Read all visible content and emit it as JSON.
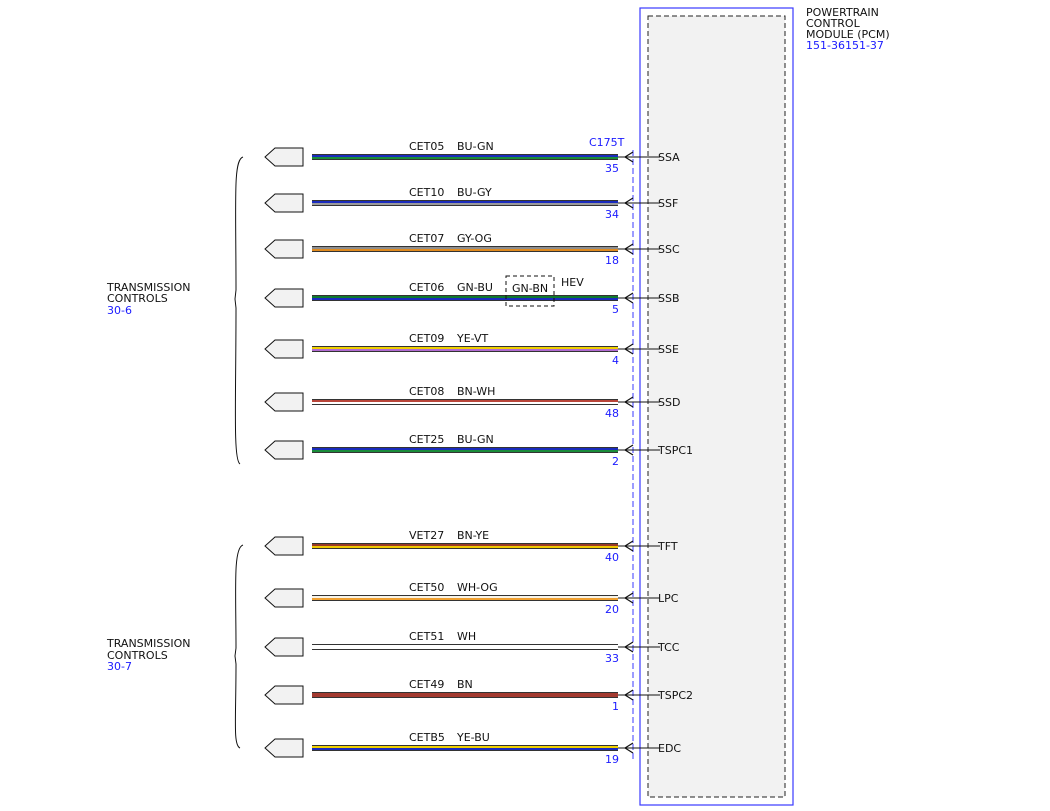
{
  "module": {
    "title_lines": [
      "POWERTRAIN",
      "CONTROL",
      "MODULE (PCM)"
    ],
    "ref": "151-36151-37",
    "connector": "C175T"
  },
  "groups": [
    {
      "label_lines": [
        "TRANSMISSION",
        "CONTROLS"
      ],
      "ref": "30-6"
    },
    {
      "label_lines": [
        "TRANSMISSION",
        "CONTROLS"
      ],
      "ref": "30-7"
    }
  ],
  "circuits": [
    {
      "circuit": "CET05",
      "color_code": "BU-GN",
      "pin": "35",
      "signal": "SSA",
      "c1": "#1a2bbd",
      "c2": "#1a8c3a"
    },
    {
      "circuit": "CET10",
      "color_code": "BU-GY",
      "pin": "34",
      "signal": "SSF",
      "c1": "#1a2bbd",
      "c2": "#9a9a9a"
    },
    {
      "circuit": "CET07",
      "color_code": "GY-OG",
      "pin": "18",
      "signal": "SSC",
      "c1": "#8f8f8f",
      "c2": "#e08a1e"
    },
    {
      "circuit": "CET06",
      "color_code": "GN-BU",
      "pin": "5",
      "signal": "SSB",
      "c1": "#0f7a2e",
      "c2": "#1a2bbd",
      "option_code": "GN-BN",
      "option_label": "HEV"
    },
    {
      "circuit": "CET09",
      "color_code": "YE-VT",
      "pin": "4",
      "signal": "SSE",
      "c1": "#f0d000",
      "c2": "#b06ad0"
    },
    {
      "circuit": "CET08",
      "color_code": "BN-WH",
      "pin": "48",
      "signal": "SSD",
      "c1": "#b8453a",
      "c2": "#ffffff"
    },
    {
      "circuit": "CET25",
      "color_code": "BU-GN",
      "pin": "2",
      "signal": "TSPC1",
      "c1": "#1a2bbd",
      "c2": "#1a8c3a"
    },
    {
      "circuit": "VET27",
      "color_code": "BN-YE",
      "pin": "40",
      "signal": "TFT",
      "c1": "#9a3a26",
      "c2": "#f0c800"
    },
    {
      "circuit": "CET50",
      "color_code": "WH-OG",
      "pin": "20",
      "signal": "LPC",
      "c1": "#f8f4e8",
      "c2": "#f0a030"
    },
    {
      "circuit": "CET51",
      "color_code": "WH",
      "pin": "33",
      "signal": "TCC",
      "c1": "#ffffff",
      "c2": "#ffffff"
    },
    {
      "circuit": "CET49",
      "color_code": "BN",
      "pin": "1",
      "signal": "TSPC2",
      "c1": "#a33a30",
      "c2": "#a33a30"
    },
    {
      "circuit": "CETB5",
      "color_code": "YE-BU",
      "pin": "19",
      "signal": "EDC",
      "c1": "#f0d000",
      "c2": "#1a2bbd"
    }
  ]
}
